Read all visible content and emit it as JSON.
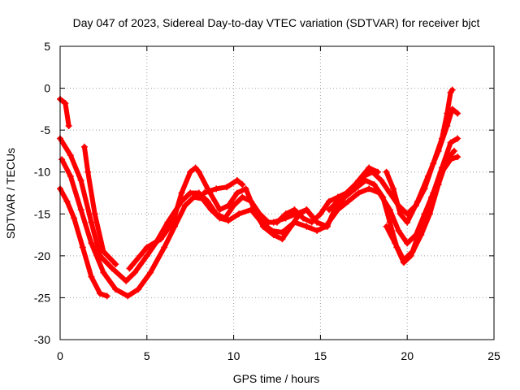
{
  "chart_data": {
    "type": "scatter",
    "title": "Day 047 of 2023, Sidereal Day-to-day VTEC variation (SDTVAR) for receiver bjct",
    "xlabel": "GPS time / hours",
    "ylabel": "SDTVAR / TECUs",
    "xlim": [
      0,
      25
    ],
    "ylim": [
      -30,
      5
    ],
    "xticks": [
      0,
      5,
      10,
      15,
      20,
      25
    ],
    "yticks": [
      5,
      0,
      -5,
      -10,
      -15,
      -20,
      -25,
      -30
    ],
    "grid": true,
    "marker_color": "#ff0000",
    "series": [
      {
        "name": "track-1",
        "points": [
          [
            0.0,
            -1.3
          ],
          [
            0.3,
            -1.8
          ],
          [
            0.5,
            -4.5
          ]
        ]
      },
      {
        "name": "track-2",
        "points": [
          [
            0.0,
            -6.0
          ],
          [
            0.6,
            -8.0
          ],
          [
            1.2,
            -11.0
          ],
          [
            1.8,
            -16.0
          ],
          [
            2.3,
            -20.0
          ],
          [
            3.0,
            -21.5
          ],
          [
            3.8,
            -23.0
          ],
          [
            4.3,
            -22.0
          ],
          [
            5.0,
            -20.0
          ],
          [
            5.5,
            -18.5
          ],
          [
            6.2,
            -16.0
          ],
          [
            7.0,
            -13.5
          ],
          [
            7.5,
            -12.5
          ],
          [
            8.0,
            -12.5
          ],
          [
            8.5,
            -13.5
          ],
          [
            9.0,
            -15.0
          ],
          [
            9.5,
            -15.5
          ],
          [
            10.0,
            -14.0
          ],
          [
            10.5,
            -13.0
          ],
          [
            11.0,
            -13.5
          ],
          [
            11.5,
            -15.0
          ],
          [
            12.0,
            -16.0
          ],
          [
            12.5,
            -16.0
          ],
          [
            13.0,
            -15.0
          ],
          [
            13.5,
            -14.5
          ],
          [
            14.0,
            -15.5
          ],
          [
            14.5,
            -16.0
          ],
          [
            15.0,
            -15.0
          ],
          [
            15.5,
            -13.5
          ],
          [
            16.0,
            -13.0
          ],
          [
            16.5,
            -12.5
          ],
          [
            17.0,
            -11.5
          ],
          [
            17.5,
            -10.5
          ],
          [
            18.0,
            -10.0
          ],
          [
            18.5,
            -11.0
          ],
          [
            19.0,
            -12.5
          ],
          [
            19.5,
            -14.0
          ],
          [
            20.0,
            -15.0
          ],
          [
            20.5,
            -14.0
          ],
          [
            21.0,
            -12.0
          ],
          [
            21.5,
            -9.0
          ],
          [
            22.0,
            -6.0
          ],
          [
            22.3,
            -3.0
          ],
          [
            22.5,
            -0.5
          ],
          [
            22.6,
            -0.2
          ]
        ]
      },
      {
        "name": "track-3",
        "points": [
          [
            0.1,
            -8.5
          ],
          [
            0.6,
            -10.5
          ],
          [
            1.2,
            -14.5
          ],
          [
            1.8,
            -18.5
          ],
          [
            2.5,
            -22.0
          ],
          [
            3.2,
            -24.0
          ],
          [
            3.9,
            -24.8
          ],
          [
            4.5,
            -24.0
          ],
          [
            5.2,
            -22.0
          ],
          [
            6.0,
            -19.0
          ],
          [
            6.6,
            -16.5
          ],
          [
            7.2,
            -14.0
          ],
          [
            7.7,
            -13.0
          ],
          [
            8.2,
            -13.2
          ],
          [
            8.7,
            -14.5
          ],
          [
            9.2,
            -15.5
          ],
          [
            9.7,
            -15.8
          ],
          [
            10.3,
            -15.0
          ],
          [
            11.0,
            -14.5
          ],
          [
            11.6,
            -16.0
          ],
          [
            12.2,
            -17.0
          ],
          [
            12.8,
            -17.2
          ],
          [
            13.5,
            -16.0
          ],
          [
            14.2,
            -16.5
          ],
          [
            14.8,
            -17.0
          ],
          [
            15.3,
            -16.5
          ],
          [
            16.0,
            -14.5
          ],
          [
            16.6,
            -13.5
          ],
          [
            17.2,
            -12.5
          ],
          [
            17.8,
            -12.0
          ],
          [
            18.4,
            -12.5
          ],
          [
            19.0,
            -14.5
          ],
          [
            19.5,
            -17.0
          ],
          [
            20.0,
            -18.5
          ],
          [
            20.5,
            -17.5
          ],
          [
            21.0,
            -15.0
          ],
          [
            21.5,
            -12.5
          ],
          [
            22.0,
            -9.5
          ],
          [
            22.5,
            -6.5
          ],
          [
            22.9,
            -6.0
          ]
        ]
      },
      {
        "name": "track-4",
        "points": [
          [
            0.0,
            -12.0
          ],
          [
            0.4,
            -13.5
          ],
          [
            0.8,
            -15.5
          ],
          [
            1.3,
            -19.0
          ],
          [
            1.8,
            -22.5
          ],
          [
            2.3,
            -24.5
          ],
          [
            2.7,
            -24.8
          ]
        ]
      },
      {
        "name": "track-5",
        "points": [
          [
            1.4,
            -7.0
          ],
          [
            1.6,
            -10.0
          ],
          [
            2.0,
            -15.0
          ],
          [
            2.5,
            -19.5
          ],
          [
            3.2,
            -21.0
          ]
        ]
      },
      {
        "name": "track-6",
        "points": [
          [
            4.0,
            -21.5
          ],
          [
            4.6,
            -20.0
          ],
          [
            5.0,
            -19.0
          ],
          [
            5.8,
            -18.0
          ],
          [
            6.5,
            -16.0
          ],
          [
            7.0,
            -12.5
          ],
          [
            7.5,
            -10.0
          ],
          [
            7.8,
            -9.5
          ],
          [
            8.0,
            -10.0
          ],
          [
            8.5,
            -12.0
          ],
          [
            9.2,
            -14.5
          ],
          [
            9.7,
            -14.0
          ],
          [
            10.2,
            -12.5
          ],
          [
            10.7,
            -12.0
          ],
          [
            11.2,
            -14.5
          ],
          [
            11.7,
            -16.5
          ],
          [
            12.3,
            -17.5
          ],
          [
            12.8,
            -18.0
          ],
          [
            13.3,
            -16.5
          ],
          [
            13.8,
            -15.0
          ],
          [
            14.2,
            -14.5
          ],
          [
            14.8,
            -16.0
          ],
          [
            15.4,
            -16.5
          ],
          [
            15.8,
            -14.5
          ],
          [
            16.4,
            -13.0
          ],
          [
            17.0,
            -12.0
          ],
          [
            17.6,
            -11.0
          ],
          [
            18.1,
            -11.5
          ],
          [
            18.6,
            -13.0
          ],
          [
            19.0,
            -16.0
          ],
          [
            19.4,
            -19.0
          ],
          [
            19.8,
            -20.8
          ],
          [
            20.2,
            -20.0
          ],
          [
            20.8,
            -17.5
          ],
          [
            21.3,
            -15.0
          ],
          [
            21.8,
            -11.5
          ],
          [
            22.3,
            -8.5
          ],
          [
            22.7,
            -7.5
          ]
        ]
      },
      {
        "name": "track-7",
        "points": [
          [
            8.3,
            -12.5
          ],
          [
            9.0,
            -12.0
          ],
          [
            9.6,
            -11.8
          ],
          [
            10.2,
            -11.0
          ],
          [
            10.5,
            -11.5
          ]
        ]
      },
      {
        "name": "track-8",
        "points": [
          [
            12.3,
            -16.0
          ],
          [
            13.0,
            -15.5
          ],
          [
            13.6,
            -15.0
          ],
          [
            14.2,
            -14.5
          ],
          [
            14.6,
            -15.5
          ]
        ]
      },
      {
        "name": "track-9",
        "points": [
          [
            15.5,
            -14.5
          ],
          [
            16.0,
            -13.5
          ],
          [
            16.6,
            -12.5
          ],
          [
            17.2,
            -11.0
          ],
          [
            17.8,
            -9.5
          ],
          [
            18.3,
            -10.0
          ]
        ]
      },
      {
        "name": "track-10",
        "points": [
          [
            18.8,
            -10.0
          ],
          [
            19.2,
            -12.0
          ],
          [
            19.6,
            -15.0
          ],
          [
            20.0,
            -16.0
          ],
          [
            20.6,
            -13.5
          ],
          [
            21.2,
            -10.5
          ],
          [
            21.8,
            -7.5
          ],
          [
            22.3,
            -4.5
          ],
          [
            22.6,
            -2.5
          ],
          [
            22.9,
            -3.0
          ]
        ]
      },
      {
        "name": "track-11",
        "points": [
          [
            18.8,
            -16.5
          ],
          [
            19.3,
            -18.5
          ],
          [
            19.8,
            -20.5
          ],
          [
            20.3,
            -19.5
          ],
          [
            20.8,
            -16.5
          ],
          [
            21.4,
            -13.0
          ],
          [
            22.0,
            -10.0
          ],
          [
            22.5,
            -8.5
          ],
          [
            22.9,
            -8.2
          ]
        ]
      }
    ]
  }
}
